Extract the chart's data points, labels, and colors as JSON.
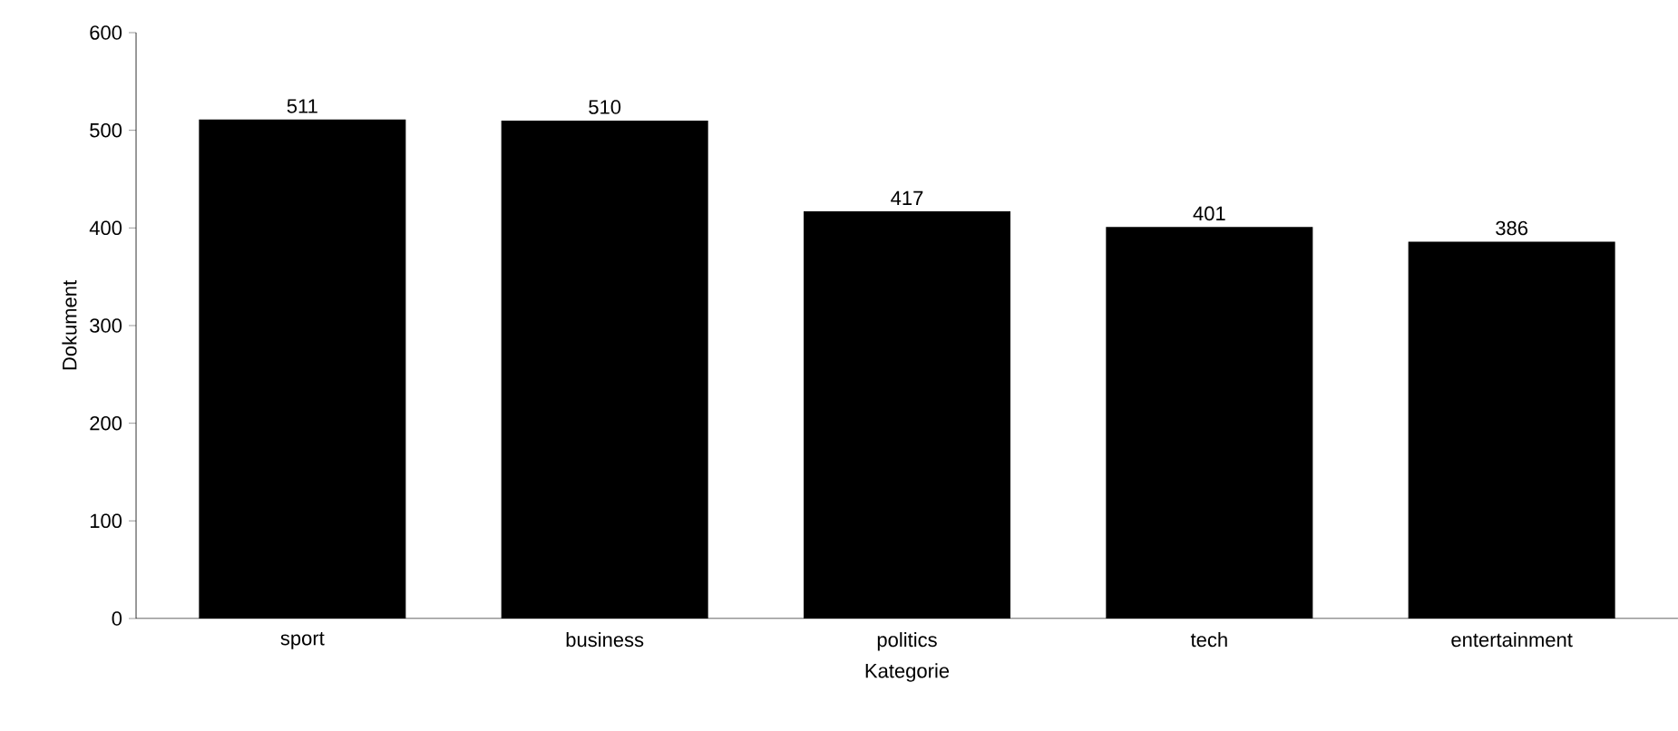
{
  "chart_data": {
    "type": "bar",
    "xlabel": "Kategorie",
    "ylabel": "Dokument",
    "categories": [
      "sport",
      "business",
      "politics",
      "tech",
      "entertainment"
    ],
    "values": [
      511,
      510,
      417,
      401,
      386
    ],
    "color": "#000000",
    "ylim": [
      0,
      600
    ],
    "yticks": [
      0,
      100,
      200,
      300,
      400,
      500,
      600
    ],
    "data_labels": true
  }
}
